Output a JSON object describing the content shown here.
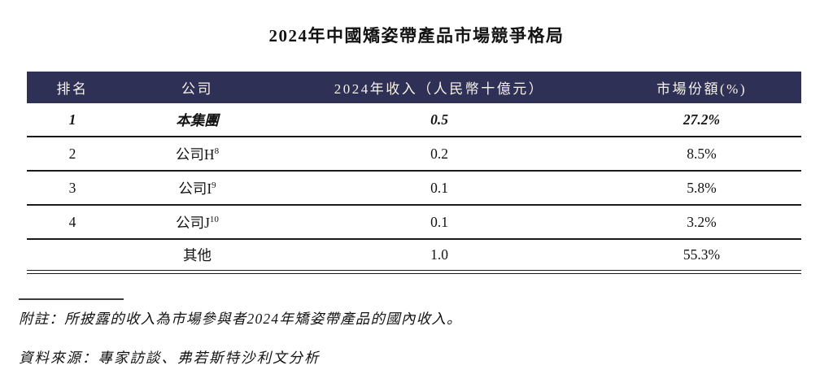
{
  "title": "2024年中國矯姿帶產品市場競爭格局",
  "colors": {
    "header_bg": "#2e3155",
    "header_text": "#f6f2e8",
    "body_text": "#131313"
  },
  "table": {
    "headers": [
      "排名",
      "公司",
      "2024年收入（人民幣十億元）",
      "市場份額(%)"
    ],
    "rows": [
      {
        "rank": "1",
        "company": "本集團",
        "sup": "",
        "revenue": "0.5",
        "share": "27.2%"
      },
      {
        "rank": "2",
        "company": "公司H",
        "sup": "8",
        "revenue": "0.2",
        "share": "8.5%"
      },
      {
        "rank": "3",
        "company": "公司I",
        "sup": "9",
        "revenue": "0.1",
        "share": "5.8%"
      },
      {
        "rank": "4",
        "company": "公司J",
        "sup": "10",
        "revenue": "0.1",
        "share": "3.2%"
      },
      {
        "rank": "",
        "company": "其他",
        "sup": "",
        "revenue": "1.0",
        "share": "55.3%"
      }
    ]
  },
  "footnote": "附註：所披露的收入為市場參與者2024年矯姿帶產品的國內收入。",
  "source": "資料來源：專家訪談、弗若斯特沙利文分析"
}
